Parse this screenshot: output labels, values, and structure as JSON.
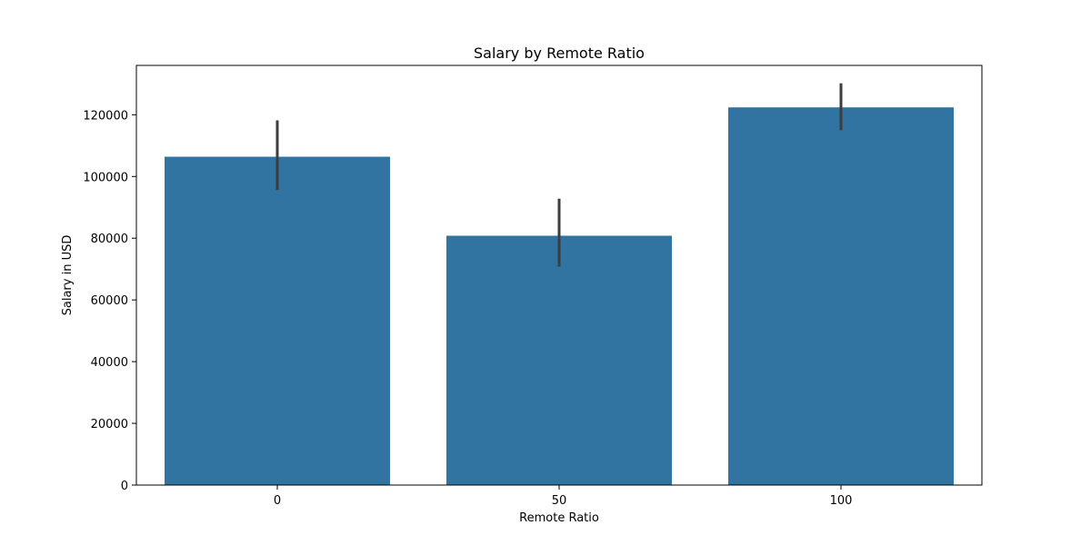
{
  "chart_data": {
    "type": "bar",
    "title": "Salary by Remote Ratio",
    "xlabel": "Remote Ratio",
    "ylabel": "Salary in USD",
    "categories": [
      "0",
      "50",
      "100"
    ],
    "values": [
      106400,
      80800,
      122400
    ],
    "error_bars": [
      {
        "low": 95600,
        "high": 118200
      },
      {
        "low": 70800,
        "high": 92800
      },
      {
        "low": 115000,
        "high": 130200
      }
    ],
    "ylim": [
      0,
      136000
    ],
    "yticks": [
      0,
      20000,
      40000,
      60000,
      80000,
      100000,
      120000
    ],
    "grid": false,
    "legend": "none",
    "colors": {
      "bar": "#3274a1",
      "error_bar": "#3d3d3d",
      "axis": "#000000"
    }
  }
}
